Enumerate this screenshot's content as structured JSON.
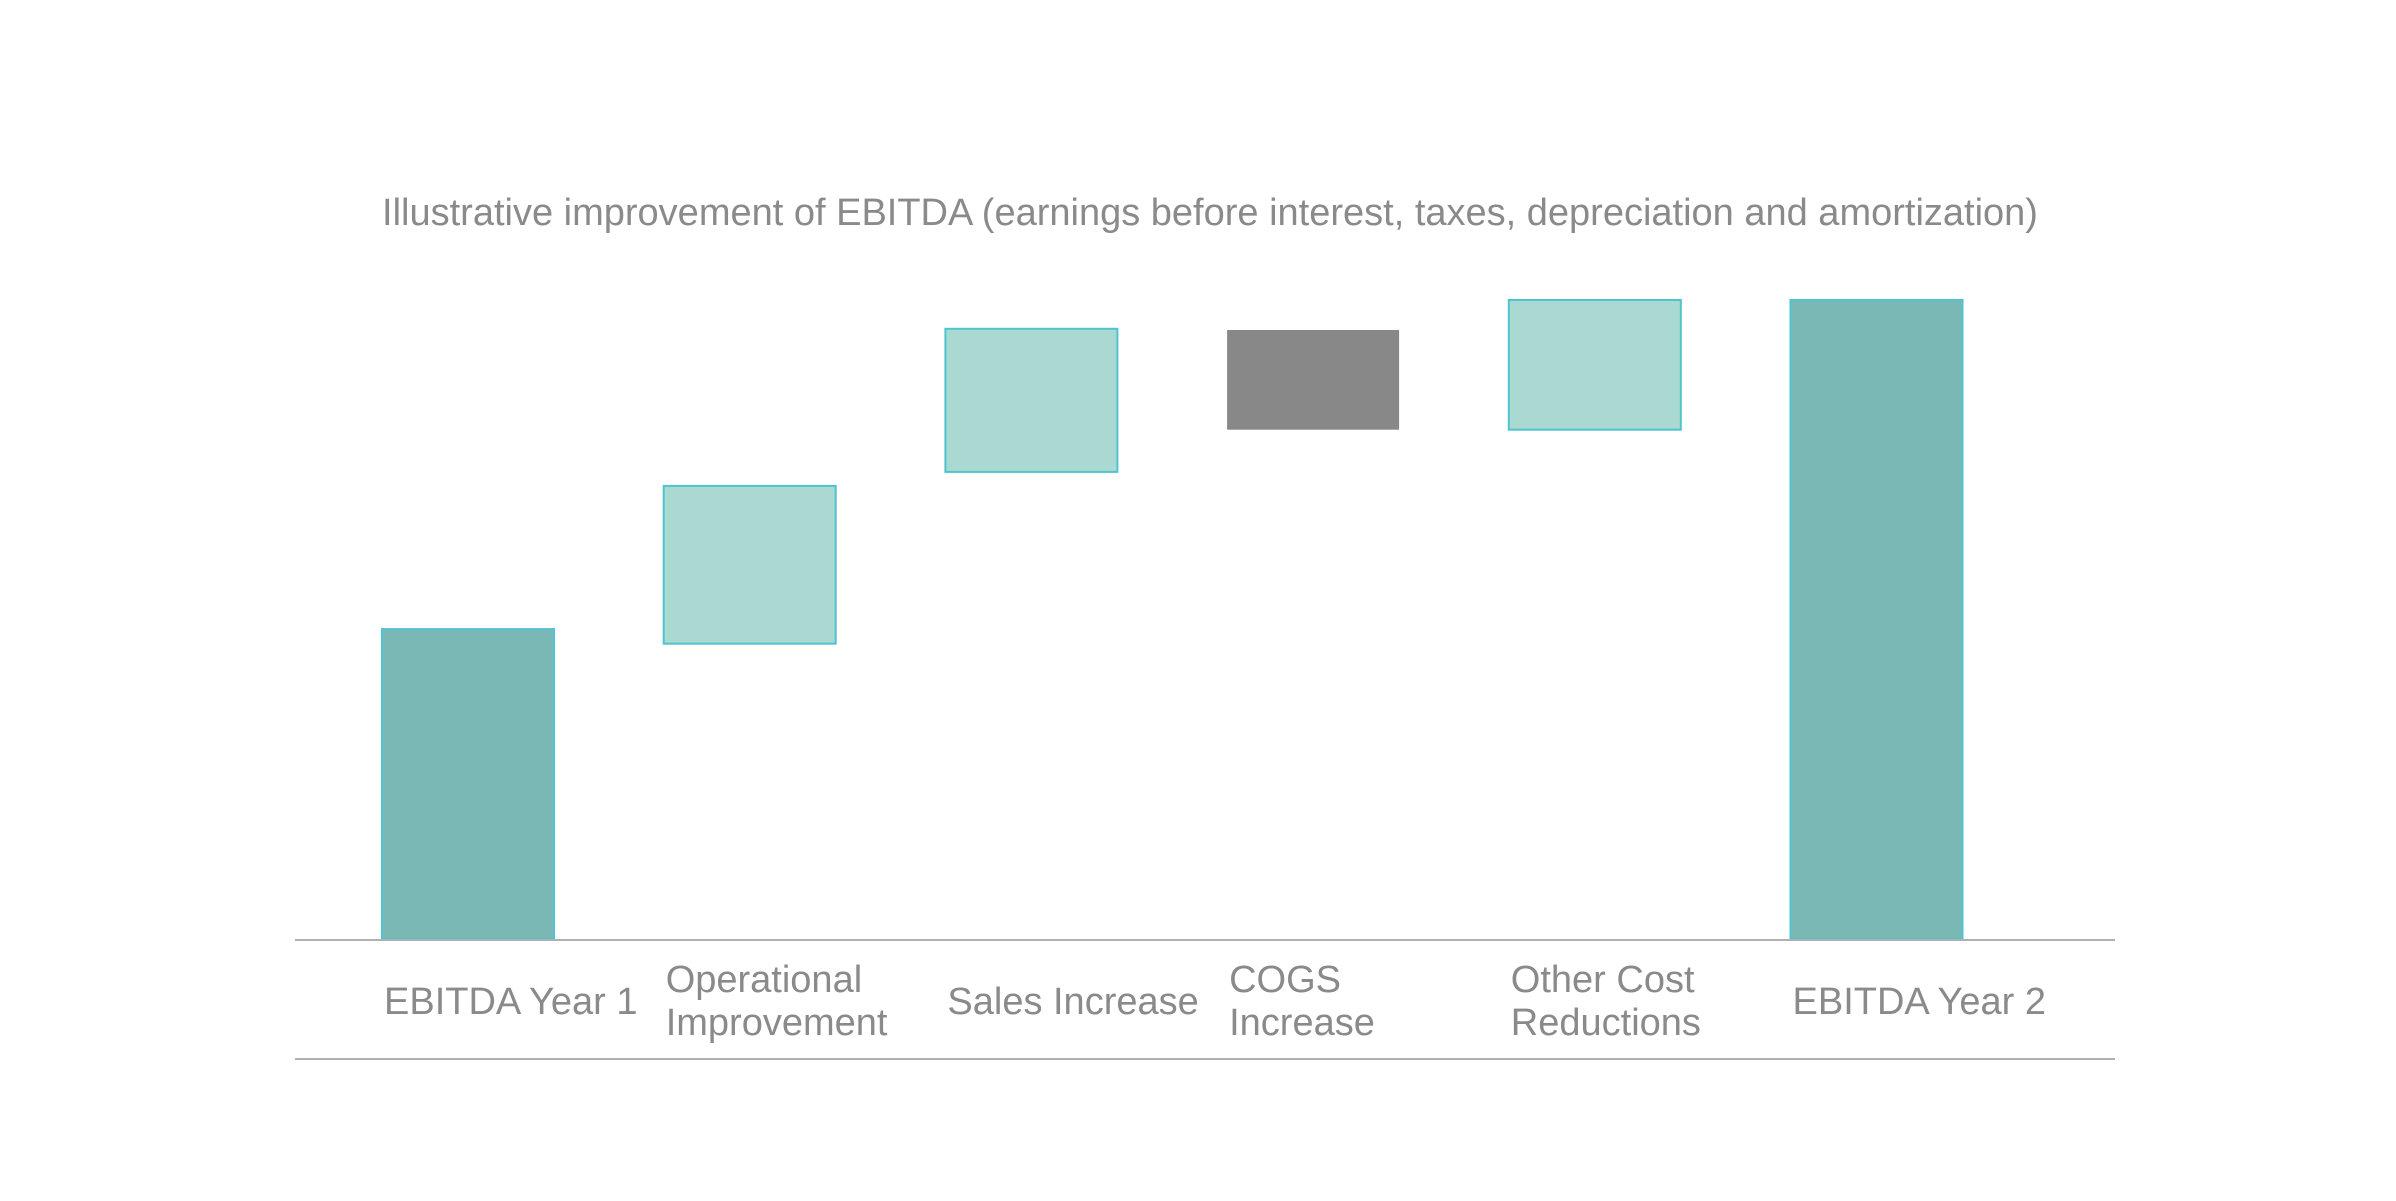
{
  "chart_data": {
    "type": "bar",
    "subtype": "waterfall",
    "title": "Illustrative improvement of EBITDA (earnings before interest, taxes, depreciation and amortization)",
    "xlabel": "",
    "ylabel": "",
    "ylim": [
      0,
      100
    ],
    "grid": false,
    "legend": "none",
    "categories": [
      [
        "EBITDA Year 1"
      ],
      [
        "Operational",
        "Improvement"
      ],
      [
        "Sales Increase"
      ],
      [
        "COGS",
        "Increase"
      ],
      [
        "Other Cost",
        "Reductions"
      ],
      [
        "EBITDA Year 2"
      ]
    ],
    "bars": [
      {
        "kind": "total",
        "start": 0,
        "end": 48.5
      },
      {
        "kind": "increase",
        "start": 46.2,
        "end": 70.9
      },
      {
        "kind": "increase",
        "start": 73.1,
        "end": 95.5
      },
      {
        "kind": "decrease",
        "start": 95.3,
        "end": 79.7
      },
      {
        "kind": "increase",
        "start": 79.7,
        "end": 100
      },
      {
        "kind": "total",
        "start": 0,
        "end": 100
      }
    ],
    "colors": {
      "total": "#7ab8b5",
      "increase": "#aad9d1",
      "decrease": "#888888",
      "bar_outline": "#4fc3cf",
      "axis_line": "#b0b0b0",
      "text": "#8a8a8a"
    }
  }
}
